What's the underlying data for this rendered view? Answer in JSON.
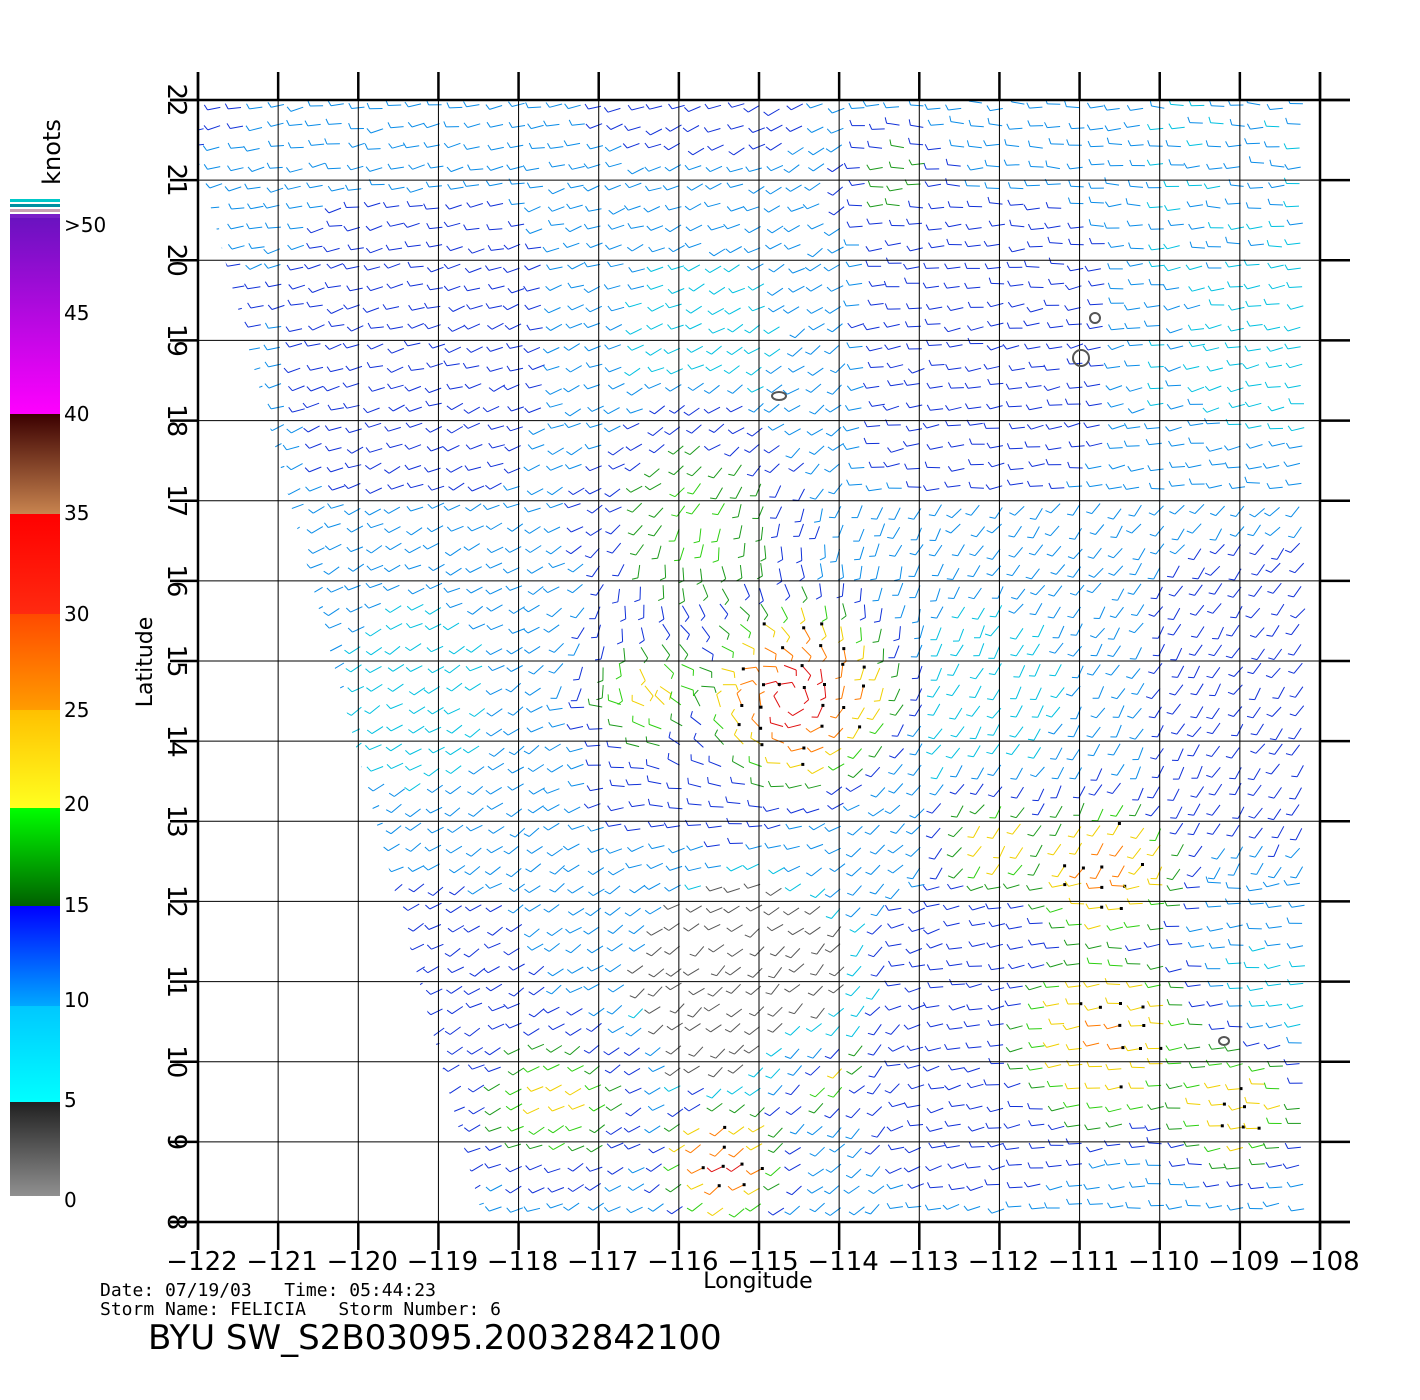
{
  "map": {
    "lon_ticks": [
      "-122",
      "-121",
      "-120",
      "-119",
      "-118",
      "-117",
      "-116",
      "-115",
      "-114",
      "-113",
      "-112",
      "-111",
      "-110",
      "-109",
      "-108"
    ],
    "lat_ticks": [
      "8",
      "9",
      "10",
      "11",
      "12",
      "13",
      "14",
      "15",
      "16",
      "17",
      "18",
      "19",
      "20",
      "21",
      "22"
    ],
    "lon_range": [
      -122,
      -108
    ],
    "lat_range": [
      8,
      22
    ],
    "xlabel": "Longitude",
    "ylabel": "Latitude"
  },
  "legend": {
    "units": "knots",
    "labels": [
      ">50",
      "45",
      "40",
      "35",
      "30",
      "25",
      "20",
      "15",
      "10",
      "5",
      "0"
    ],
    "colors": {
      "over": "#7a1fc8",
      "purple_to_magenta": [
        "#6a12c0",
        "#ff00ff"
      ],
      "brown": [
        "#3b0000",
        "#c8844f"
      ],
      "red": [
        "#ff0000",
        "#ff2a10"
      ],
      "orange": [
        "#ff5a00",
        "#ff9800"
      ],
      "yellow": [
        "#ffc000",
        "#ffff20"
      ],
      "green": [
        "#00ff00",
        "#006400"
      ],
      "blue": [
        "#0000ff",
        "#00a0ff"
      ],
      "cyan": [
        "#00c8ff",
        "#00ffff"
      ],
      "gray": [
        "#202020",
        "#909090"
      ]
    }
  },
  "footer": {
    "date_line": "Date: 07/19/03   Time: 05:44:23",
    "storm_line": "Storm Name: FELICIA   Storm Number: 6",
    "title": "BYU SW_S2B03095.20032842100"
  }
}
